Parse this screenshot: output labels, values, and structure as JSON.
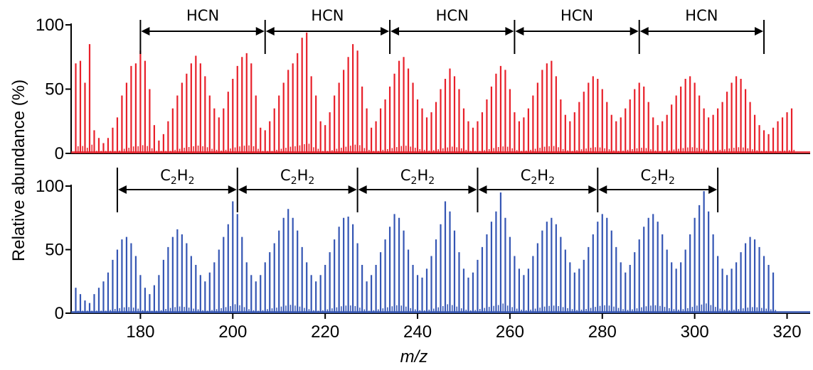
{
  "chart_data": [
    {
      "type": "bar",
      "panel": "top",
      "color": "#e8202a",
      "xlim": [
        165,
        325
      ],
      "ylim": [
        0,
        100
      ],
      "yticks": [
        "0",
        "50",
        "100"
      ],
      "peaks": [
        [
          166,
          70
        ],
        [
          167,
          72
        ],
        [
          168,
          55
        ],
        [
          169,
          85
        ],
        [
          170,
          18
        ],
        [
          171,
          12
        ],
        [
          172,
          8
        ],
        [
          173,
          12
        ],
        [
          174,
          20
        ],
        [
          175,
          28
        ],
        [
          176,
          45
        ],
        [
          177,
          55
        ],
        [
          178,
          68
        ],
        [
          179,
          70
        ],
        [
          180,
          80
        ],
        [
          181,
          72
        ],
        [
          182,
          50
        ],
        [
          183,
          22
        ],
        [
          184,
          10
        ],
        [
          185,
          15
        ],
        [
          186,
          25
        ],
        [
          187,
          35
        ],
        [
          188,
          45
        ],
        [
          189,
          55
        ],
        [
          190,
          62
        ],
        [
          191,
          70
        ],
        [
          192,
          76
        ],
        [
          193,
          70
        ],
        [
          194,
          60
        ],
        [
          195,
          45
        ],
        [
          196,
          35
        ],
        [
          197,
          28
        ],
        [
          198,
          35
        ],
        [
          199,
          48
        ],
        [
          200,
          58
        ],
        [
          201,
          68
        ],
        [
          202,
          75
        ],
        [
          203,
          78
        ],
        [
          204,
          70
        ],
        [
          205,
          45
        ],
        [
          206,
          20
        ],
        [
          207,
          18
        ],
        [
          208,
          25
        ],
        [
          209,
          35
        ],
        [
          210,
          45
        ],
        [
          211,
          55
        ],
        [
          212,
          65
        ],
        [
          213,
          70
        ],
        [
          214,
          78
        ],
        [
          215,
          90
        ],
        [
          216,
          94
        ],
        [
          217,
          60
        ],
        [
          218,
          45
        ],
        [
          219,
          25
        ],
        [
          220,
          22
        ],
        [
          221,
          32
        ],
        [
          222,
          45
        ],
        [
          223,
          55
        ],
        [
          224,
          65
        ],
        [
          225,
          75
        ],
        [
          226,
          85
        ],
        [
          227,
          80
        ],
        [
          228,
          52
        ],
        [
          229,
          35
        ],
        [
          230,
          20
        ],
        [
          231,
          25
        ],
        [
          232,
          35
        ],
        [
          233,
          42
        ],
        [
          234,
          52
        ],
        [
          235,
          62
        ],
        [
          236,
          72
        ],
        [
          237,
          75
        ],
        [
          238,
          66
        ],
        [
          239,
          55
        ],
        [
          240,
          42
        ],
        [
          241,
          35
        ],
        [
          242,
          28
        ],
        [
          243,
          32
        ],
        [
          244,
          40
        ],
        [
          245,
          50
        ],
        [
          246,
          58
        ],
        [
          247,
          66
        ],
        [
          248,
          60
        ],
        [
          249,
          50
        ],
        [
          250,
          35
        ],
        [
          251,
          25
        ],
        [
          252,
          20
        ],
        [
          253,
          25
        ],
        [
          254,
          32
        ],
        [
          255,
          42
        ],
        [
          256,
          52
        ],
        [
          257,
          62
        ],
        [
          258,
          68
        ],
        [
          259,
          65
        ],
        [
          260,
          50
        ],
        [
          261,
          32
        ],
        [
          262,
          25
        ],
        [
          263,
          28
        ],
        [
          264,
          35
        ],
        [
          265,
          45
        ],
        [
          266,
          55
        ],
        [
          267,
          65
        ],
        [
          268,
          70
        ],
        [
          269,
          72
        ],
        [
          270,
          60
        ],
        [
          271,
          42
        ],
        [
          272,
          30
        ],
        [
          273,
          25
        ],
        [
          274,
          32
        ],
        [
          275,
          40
        ],
        [
          276,
          48
        ],
        [
          277,
          55
        ],
        [
          278,
          60
        ],
        [
          279,
          58
        ],
        [
          280,
          50
        ],
        [
          281,
          40
        ],
        [
          282,
          30
        ],
        [
          283,
          25
        ],
        [
          284,
          28
        ],
        [
          285,
          35
        ],
        [
          286,
          42
        ],
        [
          287,
          50
        ],
        [
          288,
          55
        ],
        [
          289,
          52
        ],
        [
          290,
          40
        ],
        [
          291,
          28
        ],
        [
          292,
          22
        ],
        [
          293,
          25
        ],
        [
          294,
          30
        ],
        [
          295,
          38
        ],
        [
          296,
          45
        ],
        [
          297,
          52
        ],
        [
          298,
          58
        ],
        [
          299,
          60
        ],
        [
          300,
          55
        ],
        [
          301,
          45
        ],
        [
          302,
          35
        ],
        [
          303,
          28
        ],
        [
          304,
          30
        ],
        [
          305,
          35
        ],
        [
          306,
          40
        ],
        [
          307,
          48
        ],
        [
          308,
          55
        ],
        [
          309,
          60
        ],
        [
          310,
          58
        ],
        [
          311,
          50
        ],
        [
          312,
          40
        ],
        [
          313,
          30
        ],
        [
          314,
          22
        ],
        [
          315,
          18
        ],
        [
          316,
          15
        ],
        [
          317,
          20
        ],
        [
          318,
          25
        ],
        [
          319,
          28
        ],
        [
          320,
          32
        ],
        [
          321,
          35
        ]
      ],
      "annotations": [
        {
          "label": "HCN",
          "from": 180,
          "to": 207
        },
        {
          "label": "HCN",
          "from": 207,
          "to": 234
        },
        {
          "label": "HCN",
          "from": 234,
          "to": 261
        },
        {
          "label": "HCN",
          "from": 261,
          "to": 288
        },
        {
          "label": "HCN",
          "from": 288,
          "to": 315
        }
      ]
    },
    {
      "type": "bar",
      "panel": "bottom",
      "color": "#3556b4",
      "xlim": [
        165,
        325
      ],
      "ylim": [
        0,
        100
      ],
      "xticks": [
        "180",
        "200",
        "220",
        "240",
        "260",
        "280",
        "300",
        "320"
      ],
      "yticks": [
        "0",
        "50",
        "100"
      ],
      "peaks": [
        [
          166,
          20
        ],
        [
          167,
          15
        ],
        [
          168,
          10
        ],
        [
          169,
          8
        ],
        [
          170,
          15
        ],
        [
          171,
          20
        ],
        [
          172,
          25
        ],
        [
          173,
          32
        ],
        [
          174,
          42
        ],
        [
          175,
          50
        ],
        [
          176,
          58
        ],
        [
          177,
          60
        ],
        [
          178,
          55
        ],
        [
          179,
          45
        ],
        [
          180,
          30
        ],
        [
          181,
          20
        ],
        [
          182,
          15
        ],
        [
          183,
          22
        ],
        [
          184,
          30
        ],
        [
          185,
          42
        ],
        [
          186,
          52
        ],
        [
          187,
          60
        ],
        [
          188,
          66
        ],
        [
          189,
          62
        ],
        [
          190,
          55
        ],
        [
          191,
          45
        ],
        [
          192,
          38
        ],
        [
          193,
          30
        ],
        [
          194,
          25
        ],
        [
          195,
          32
        ],
        [
          196,
          40
        ],
        [
          197,
          50
        ],
        [
          198,
          60
        ],
        [
          199,
          70
        ],
        [
          200,
          88
        ],
        [
          201,
          78
        ],
        [
          202,
          60
        ],
        [
          203,
          40
        ],
        [
          204,
          30
        ],
        [
          205,
          25
        ],
        [
          206,
          30
        ],
        [
          207,
          40
        ],
        [
          208,
          48
        ],
        [
          209,
          55
        ],
        [
          210,
          65
        ],
        [
          211,
          75
        ],
        [
          212,
          82
        ],
        [
          213,
          75
        ],
        [
          214,
          65
        ],
        [
          215,
          52
        ],
        [
          216,
          40
        ],
        [
          217,
          30
        ],
        [
          218,
          25
        ],
        [
          219,
          30
        ],
        [
          220,
          38
        ],
        [
          221,
          48
        ],
        [
          222,
          58
        ],
        [
          223,
          68
        ],
        [
          224,
          75
        ],
        [
          225,
          76
        ],
        [
          226,
          70
        ],
        [
          227,
          55
        ],
        [
          228,
          38
        ],
        [
          229,
          25
        ],
        [
          230,
          30
        ],
        [
          231,
          38
        ],
        [
          232,
          48
        ],
        [
          233,
          58
        ],
        [
          234,
          68
        ],
        [
          235,
          78
        ],
        [
          236,
          75
        ],
        [
          237,
          65
        ],
        [
          238,
          50
        ],
        [
          239,
          38
        ],
        [
          240,
          30
        ],
        [
          241,
          28
        ],
        [
          242,
          35
        ],
        [
          243,
          45
        ],
        [
          244,
          58
        ],
        [
          245,
          70
        ],
        [
          246,
          88
        ],
        [
          247,
          80
        ],
        [
          248,
          65
        ],
        [
          249,
          48
        ],
        [
          250,
          35
        ],
        [
          251,
          28
        ],
        [
          252,
          32
        ],
        [
          253,
          42
        ],
        [
          254,
          52
        ],
        [
          255,
          62
        ],
        [
          256,
          72
        ],
        [
          257,
          80
        ],
        [
          258,
          95
        ],
        [
          259,
          75
        ],
        [
          260,
          60
        ],
        [
          261,
          45
        ],
        [
          262,
          35
        ],
        [
          263,
          30
        ],
        [
          264,
          35
        ],
        [
          265,
          45
        ],
        [
          266,
          55
        ],
        [
          267,
          65
        ],
        [
          268,
          72
        ],
        [
          269,
          75
        ],
        [
          270,
          70
        ],
        [
          271,
          60
        ],
        [
          272,
          50
        ],
        [
          273,
          40
        ],
        [
          274,
          32
        ],
        [
          275,
          35
        ],
        [
          276,
          42
        ],
        [
          277,
          52
        ],
        [
          278,
          62
        ],
        [
          279,
          72
        ],
        [
          280,
          78
        ],
        [
          281,
          75
        ],
        [
          282,
          65
        ],
        [
          283,
          52
        ],
        [
          284,
          40
        ],
        [
          285,
          32
        ],
        [
          286,
          38
        ],
        [
          287,
          48
        ],
        [
          288,
          58
        ],
        [
          289,
          68
        ],
        [
          290,
          75
        ],
        [
          291,
          78
        ],
        [
          292,
          72
        ],
        [
          293,
          62
        ],
        [
          294,
          50
        ],
        [
          295,
          40
        ],
        [
          296,
          35
        ],
        [
          297,
          40
        ],
        [
          298,
          50
        ],
        [
          299,
          62
        ],
        [
          300,
          75
        ],
        [
          301,
          85
        ],
        [
          302,
          96
        ],
        [
          303,
          80
        ],
        [
          304,
          62
        ],
        [
          305,
          45
        ],
        [
          306,
          35
        ],
        [
          307,
          30
        ],
        [
          308,
          35
        ],
        [
          309,
          40
        ],
        [
          310,
          48
        ],
        [
          311,
          55
        ],
        [
          312,
          60
        ],
        [
          313,
          58
        ],
        [
          314,
          52
        ],
        [
          315,
          45
        ],
        [
          316,
          38
        ],
        [
          317,
          32
        ]
      ],
      "annotations": [
        {
          "label_main": "C",
          "sub1": "2",
          "label_mid": "H",
          "sub2": "2",
          "from": 175,
          "to": 201
        },
        {
          "label_main": "C",
          "sub1": "2",
          "label_mid": "H",
          "sub2": "2",
          "from": 201,
          "to": 227
        },
        {
          "label_main": "C",
          "sub1": "2",
          "label_mid": "H",
          "sub2": "2",
          "from": 227,
          "to": 253
        },
        {
          "label_main": "C",
          "sub1": "2",
          "label_mid": "H",
          "sub2": "2",
          "from": 253,
          "to": 279
        },
        {
          "label_main": "C",
          "sub1": "2",
          "label_mid": "H",
          "sub2": "2",
          "from": 279,
          "to": 305
        }
      ]
    }
  ],
  "axes": {
    "ylabel": "Relative abundance (%)",
    "xlabel": "m/z"
  }
}
